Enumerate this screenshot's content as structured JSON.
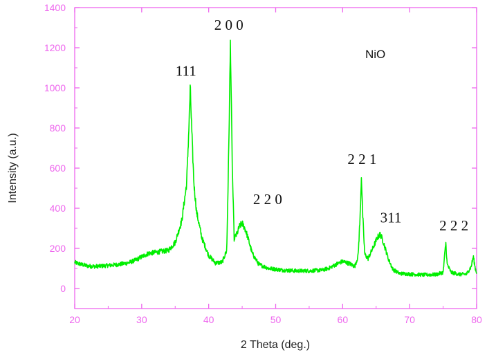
{
  "chart_data": {
    "type": "line",
    "title": "",
    "xlabel": "2 Theta (deg.)",
    "ylabel": "Intensity (a.u.)",
    "xlim": [
      20,
      80
    ],
    "ylim": [
      -100,
      1400
    ],
    "xticks": [
      20,
      30,
      40,
      50,
      60,
      70,
      80
    ],
    "yticks": [
      0,
      200,
      400,
      600,
      800,
      1000,
      1200,
      1400
    ],
    "grid": false,
    "series": [
      {
        "name": "NiO",
        "color": "#00ee00",
        "points": [
          [
            20,
            130
          ],
          [
            21,
            120
          ],
          [
            22,
            112
          ],
          [
            23,
            110
          ],
          [
            24,
            112
          ],
          [
            25,
            115
          ],
          [
            26,
            118
          ],
          [
            27,
            122
          ],
          [
            28,
            128
          ],
          [
            29,
            140
          ],
          [
            30,
            158
          ],
          [
            31,
            175
          ],
          [
            32,
            180
          ],
          [
            33,
            185
          ],
          [
            34,
            190
          ],
          [
            35,
            230
          ],
          [
            36,
            340
          ],
          [
            36.7,
            520
          ],
          [
            37.0,
            760
          ],
          [
            37.25,
            1000
          ],
          [
            37.5,
            760
          ],
          [
            37.8,
            520
          ],
          [
            38.2,
            380
          ],
          [
            39,
            250
          ],
          [
            40,
            165
          ],
          [
            41,
            128
          ],
          [
            42,
            130
          ],
          [
            42.7,
            190
          ],
          [
            43.0,
            700
          ],
          [
            43.25,
            1240
          ],
          [
            43.5,
            640
          ],
          [
            43.8,
            250
          ],
          [
            44.2,
            270
          ],
          [
            44.6,
            310
          ],
          [
            45.0,
            325
          ],
          [
            45.4,
            300
          ],
          [
            45.8,
            260
          ],
          [
            46.5,
            175
          ],
          [
            47.5,
            120
          ],
          [
            49,
            100
          ],
          [
            51,
            92
          ],
          [
            53,
            88
          ],
          [
            55,
            88
          ],
          [
            57,
            92
          ],
          [
            58,
            102
          ],
          [
            59,
            120
          ],
          [
            60,
            135
          ],
          [
            61,
            125
          ],
          [
            61.8,
            110
          ],
          [
            62.3,
            160
          ],
          [
            62.6,
            350
          ],
          [
            62.8,
            565
          ],
          [
            63.0,
            360
          ],
          [
            63.3,
            170
          ],
          [
            63.8,
            150
          ],
          [
            64.5,
            200
          ],
          [
            65.2,
            255
          ],
          [
            65.6,
            270
          ],
          [
            66.0,
            240
          ],
          [
            66.8,
            150
          ],
          [
            67.5,
            95
          ],
          [
            68.5,
            75
          ],
          [
            70,
            72
          ],
          [
            72,
            68
          ],
          [
            74,
            70
          ],
          [
            75.0,
            80
          ],
          [
            75.4,
            230
          ],
          [
            75.6,
            120
          ],
          [
            76.2,
            80
          ],
          [
            77.5,
            70
          ],
          [
            78.5,
            72
          ],
          [
            79.2,
            110
          ],
          [
            79.5,
            160
          ],
          [
            79.8,
            100
          ],
          [
            80,
            80
          ]
        ]
      }
    ],
    "annotations": [
      {
        "text": "111",
        "x": 36.6,
        "y": 1060
      },
      {
        "text": "2 0 0",
        "x": 43.0,
        "y": 1290
      },
      {
        "text": "2 2 0",
        "x": 48.8,
        "y": 420
      },
      {
        "text": "2 2 1",
        "x": 62.9,
        "y": 620
      },
      {
        "text": "311",
        "x": 67.2,
        "y": 330
      },
      {
        "text": "2 2 2",
        "x": 76.6,
        "y": 290
      }
    ],
    "legend": {
      "text": "NiO",
      "position": "top-right"
    },
    "axis_color": "#ee66ee"
  }
}
